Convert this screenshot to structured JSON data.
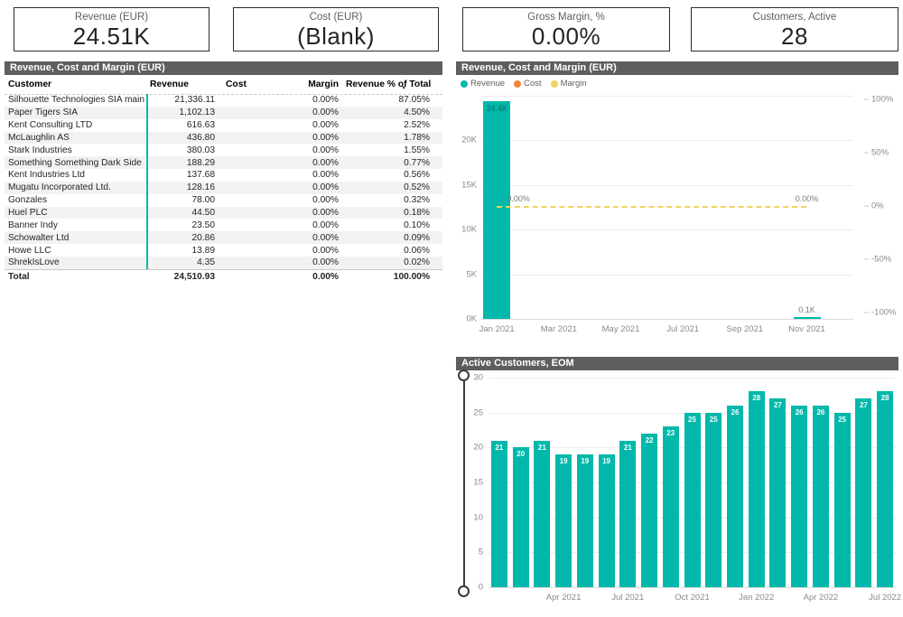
{
  "cards": [
    {
      "label": "Revenue (EUR)",
      "value": "24.51K"
    },
    {
      "label": "Cost (EUR)",
      "value": "(Blank)"
    },
    {
      "label": "Gross Margin, %",
      "value": "0.00%"
    },
    {
      "label": "Customers, Active",
      "value": "28"
    }
  ],
  "table": {
    "title": "Revenue, Cost and Margin (EUR)",
    "columns": [
      "Customer",
      "Revenue",
      "Cost",
      "Margin",
      "Revenue % of Total"
    ],
    "sort": {
      "column": "Revenue % of Total",
      "direction": "descending"
    },
    "rows": [
      {
        "customer": "Silhouette Technologies SIA main",
        "revenue": "21,336.11",
        "cost": "",
        "margin": "0.00%",
        "pct": "87.05%"
      },
      {
        "customer": "Paper Tigers SIA",
        "revenue": "1,102.13",
        "cost": "",
        "margin": "0.00%",
        "pct": "4.50%"
      },
      {
        "customer": "Kent Consulting LTD",
        "revenue": "616.63",
        "cost": "",
        "margin": "0.00%",
        "pct": "2.52%"
      },
      {
        "customer": "McLaughlin AS",
        "revenue": "436.80",
        "cost": "",
        "margin": "0.00%",
        "pct": "1.78%"
      },
      {
        "customer": "Stark Industries",
        "revenue": "380.03",
        "cost": "",
        "margin": "0.00%",
        "pct": "1.55%"
      },
      {
        "customer": "Something Something Dark Side",
        "revenue": "188.29",
        "cost": "",
        "margin": "0.00%",
        "pct": "0.77%"
      },
      {
        "customer": "Kent Industries Ltd",
        "revenue": "137.68",
        "cost": "",
        "margin": "0.00%",
        "pct": "0.56%"
      },
      {
        "customer": "Mugatu Incorporated Ltd.",
        "revenue": "128.16",
        "cost": "",
        "margin": "0.00%",
        "pct": "0.52%"
      },
      {
        "customer": "Gonzales",
        "revenue": "78.00",
        "cost": "",
        "margin": "0.00%",
        "pct": "0.32%"
      },
      {
        "customer": "Huel PLC",
        "revenue": "44.50",
        "cost": "",
        "margin": "0.00%",
        "pct": "0.18%"
      },
      {
        "customer": "Banner Indy",
        "revenue": "23.50",
        "cost": "",
        "margin": "0.00%",
        "pct": "0.10%"
      },
      {
        "customer": "Schowalter Ltd",
        "revenue": "20.86",
        "cost": "",
        "margin": "0.00%",
        "pct": "0.09%"
      },
      {
        "customer": "Howe LLC",
        "revenue": "13.89",
        "cost": "",
        "margin": "0.00%",
        "pct": "0.06%"
      },
      {
        "customer": "ShrekIsLove",
        "revenue": "4.35",
        "cost": "",
        "margin": "0.00%",
        "pct": "0.02%"
      }
    ],
    "total": {
      "customer": "Total",
      "revenue": "24,510.93",
      "cost": "",
      "margin": "0.00%",
      "pct": "100.00%"
    }
  },
  "colors": {
    "accent_teal": "#01B8AA",
    "cost_orange": "#F5823B",
    "margin_yellow": "#EFD35D",
    "panel_header": "#5E5E5E"
  },
  "chart_data": [
    {
      "type": "bar",
      "title": "Revenue, Cost and Margin (EUR)",
      "subtitle": "combo chart: columns = Revenue (EUR, left axis), dashed line = Margin (%, right axis)",
      "categories": [
        "Jan 2021",
        "Feb 2021",
        "Mar 2021",
        "Apr 2021",
        "May 2021",
        "Jun 2021",
        "Jul 2021",
        "Aug 2021",
        "Sep 2021",
        "Oct 2021",
        "Nov 2021",
        "Dec 2021"
      ],
      "series": [
        {
          "name": "Revenue",
          "type": "column",
          "color": "#01B8AA",
          "axis": "left",
          "values": [
            24410,
            null,
            null,
            null,
            null,
            null,
            null,
            null,
            null,
            null,
            100,
            null
          ],
          "data_labels": [
            "24.4K",
            "",
            "",
            "",
            "",
            "",
            "",
            "",
            "",
            "",
            "0.1K",
            ""
          ]
        },
        {
          "name": "Cost",
          "type": "column",
          "color": "#F5823B",
          "axis": "left",
          "values": [
            null,
            null,
            null,
            null,
            null,
            null,
            null,
            null,
            null,
            null,
            null,
            null
          ],
          "data_labels": [
            "",
            "",
            "",
            "",
            "",
            "",
            "",
            "",
            "",
            "",
            "",
            ""
          ]
        },
        {
          "name": "Margin",
          "type": "line-dashed",
          "color": "#EFD35D",
          "axis": "right",
          "values": [
            0,
            null,
            null,
            null,
            null,
            null,
            null,
            null,
            null,
            null,
            0,
            null
          ],
          "data_labels": [
            "0.00%",
            "",
            "",
            "",
            "",
            "",
            "",
            "",
            "",
            "",
            "0.00%",
            ""
          ]
        }
      ],
      "y_left": {
        "ticks": [
          "0K",
          "5K",
          "10K",
          "15K",
          "20K"
        ],
        "min": 0,
        "tick_step": 5000,
        "grid_max": 25000
      },
      "y_right": {
        "ticks": [
          "-100%",
          "-50%",
          "0%",
          "50%",
          "100%"
        ],
        "min": -100,
        "max": 100
      },
      "x_tick_indices": [
        0,
        2,
        4,
        6,
        8,
        10
      ],
      "x_tick_labels": [
        "Jan 2021",
        "Mar 2021",
        "May 2021",
        "Jul 2021",
        "Sep 2021",
        "Nov 2021"
      ],
      "legend": {
        "position": "top-left",
        "items": [
          {
            "label": "Revenue",
            "color": "#01B8AA"
          },
          {
            "label": "Cost",
            "color": "#F5823B"
          },
          {
            "label": "Margin",
            "color": "#EFD35D"
          }
        ]
      },
      "grid": true
    },
    {
      "type": "bar",
      "title": "Active Customers, EOM",
      "categories": [
        "Jan 2021",
        "Feb 2021",
        "Mar 2021",
        "Apr 2021",
        "May 2021",
        "Jun 2021",
        "Jul 2021",
        "Aug 2021",
        "Sep 2021",
        "Oct 2021",
        "Nov 2021",
        "Dec 2021",
        "Jan 2022",
        "Feb 2022",
        "Mar 2022",
        "Apr 2022",
        "May 2022",
        "Jun 2022",
        "Jul 2022"
      ],
      "values": [
        21,
        20,
        21,
        19,
        19,
        19,
        21,
        22,
        23,
        25,
        25,
        26,
        28,
        27,
        26,
        26,
        25,
        27,
        28
      ],
      "bar_color": "#01B8AA",
      "ylim": [
        0,
        30
      ],
      "y_ticks": [
        0,
        5,
        10,
        15,
        20,
        25,
        30
      ],
      "x_tick_indices": [
        3,
        6,
        9,
        12,
        15,
        18
      ],
      "x_tick_labels": [
        "Apr 2021",
        "Jul 2021",
        "Oct 2021",
        "Jan 2022",
        "Apr 2022",
        "Jul 2022"
      ],
      "grid": true,
      "data_labels": "inside-top, white"
    }
  ]
}
